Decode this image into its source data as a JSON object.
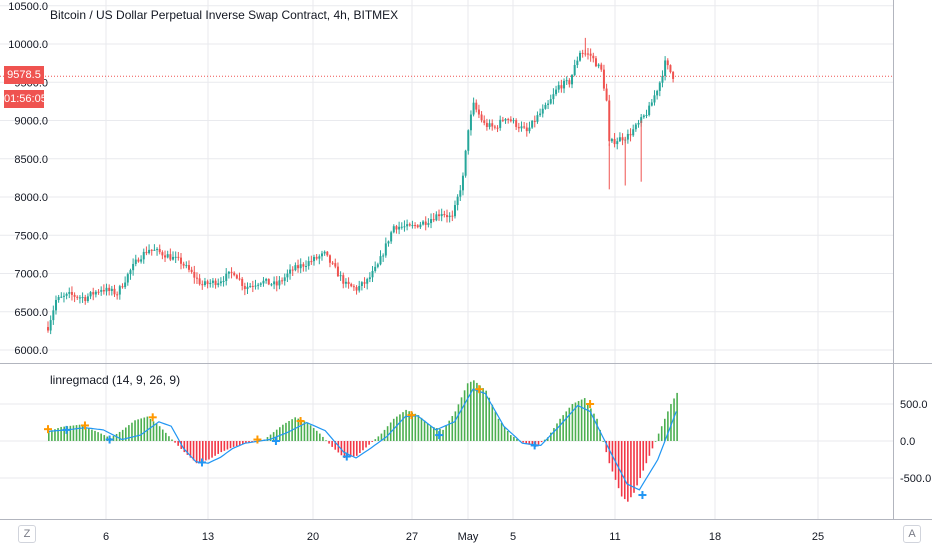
{
  "header": {
    "title": "Bitcoin / US Dollar Perpetual Inverse Swap Contract, 4h, BITMEX"
  },
  "price_tag": {
    "price": "9578.5",
    "countdown": "01:56:05"
  },
  "indicator": {
    "label": "linregmacd (14, 9, 26, 9)"
  },
  "controls": {
    "left": "Z",
    "right": "A"
  },
  "colors": {
    "up": "#26a69a",
    "down": "#ef5350",
    "hist_up": "#4caf50",
    "hist_down": "#f23645",
    "signal": "#2196f3",
    "cross_up": "#2196f3",
    "cross_down": "#ff9800",
    "grid": "#e9eaee"
  },
  "chart_data": [
    {
      "type": "candlestick",
      "title": "Bitcoin / US Dollar Perpetual Inverse Swap Contract, 4h, BITMEX",
      "y_ticks": [
        "10500.0",
        "10000.0",
        "9500.0",
        "9000.0",
        "8500.0",
        "8000.0",
        "7500.0",
        "7000.0",
        "6500.0",
        "6000.0"
      ],
      "ylim": [
        5850,
        10600
      ],
      "x_ticks": [
        "6",
        "13",
        "20",
        "27",
        "May",
        "5",
        "11",
        "18",
        "25"
      ],
      "last_price": 9578.5,
      "close_path": [
        [
          0,
          6300
        ],
        [
          3,
          6650
        ],
        [
          8,
          6720
        ],
        [
          14,
          6680
        ],
        [
          20,
          6800
        ],
        [
          26,
          6740
        ],
        [
          30,
          6980
        ],
        [
          34,
          7200
        ],
        [
          38,
          7320
        ],
        [
          44,
          7250
        ],
        [
          50,
          7150
        ],
        [
          54,
          7000
        ],
        [
          58,
          6850
        ],
        [
          64,
          6900
        ],
        [
          70,
          7020
        ],
        [
          74,
          6820
        ],
        [
          80,
          6900
        ],
        [
          86,
          6850
        ],
        [
          92,
          7050
        ],
        [
          98,
          7150
        ],
        [
          104,
          7250
        ],
        [
          108,
          7050
        ],
        [
          112,
          6850
        ],
        [
          116,
          6800
        ],
        [
          120,
          6900
        ],
        [
          124,
          7100
        ],
        [
          130,
          7620
        ],
        [
          136,
          7600
        ],
        [
          142,
          7680
        ],
        [
          148,
          7800
        ],
        [
          152,
          7720
        ],
        [
          156,
          8250
        ],
        [
          158,
          8900
        ],
        [
          160,
          9200
        ],
        [
          164,
          8950
        ],
        [
          168,
          8900
        ],
        [
          172,
          9050
        ],
        [
          176,
          8950
        ],
        [
          180,
          8850
        ],
        [
          184,
          9050
        ],
        [
          188,
          9200
        ],
        [
          192,
          9450
        ],
        [
          196,
          9500
        ],
        [
          200,
          9900
        ],
        [
          204,
          9850
        ],
        [
          208,
          9650
        ],
        [
          210,
          9250
        ],
        [
          211,
          8700
        ],
        [
          214,
          8750
        ],
        [
          218,
          8800
        ],
        [
          222,
          8950
        ],
        [
          226,
          9150
        ],
        [
          230,
          9500
        ],
        [
          232,
          9750
        ],
        [
          235,
          9580
        ]
      ]
    },
    {
      "type": "histogram",
      "title": "linregmacd (14, 9, 26, 9)",
      "y_ticks": [
        "500.0",
        "0.0",
        "-500.0"
      ],
      "ylim": [
        -900,
        900
      ],
      "hist_path": [
        [
          0,
          130
        ],
        [
          4,
          190
        ],
        [
          10,
          220
        ],
        [
          16,
          120
        ],
        [
          20,
          40
        ],
        [
          24,
          150
        ],
        [
          28,
          280
        ],
        [
          32,
          330
        ],
        [
          36,
          200
        ],
        [
          40,
          20
        ],
        [
          44,
          -150
        ],
        [
          48,
          -300
        ],
        [
          52,
          -250
        ],
        [
          56,
          -150
        ],
        [
          60,
          -80
        ],
        [
          64,
          -30
        ],
        [
          70,
          20
        ],
        [
          76,
          220
        ],
        [
          80,
          320
        ],
        [
          84,
          250
        ],
        [
          88,
          100
        ],
        [
          92,
          -80
        ],
        [
          96,
          -230
        ],
        [
          100,
          -200
        ],
        [
          104,
          -50
        ],
        [
          108,
          100
        ],
        [
          112,
          300
        ],
        [
          116,
          420
        ],
        [
          120,
          350
        ],
        [
          124,
          200
        ],
        [
          128,
          150
        ],
        [
          132,
          400
        ],
        [
          136,
          780
        ],
        [
          138,
          820
        ],
        [
          142,
          680
        ],
        [
          146,
          300
        ],
        [
          150,
          80
        ],
        [
          154,
          -20
        ],
        [
          158,
          -80
        ],
        [
          162,
          50
        ],
        [
          166,
          300
        ],
        [
          170,
          500
        ],
        [
          174,
          580
        ],
        [
          178,
          300
        ],
        [
          182,
          -300
        ],
        [
          186,
          -750
        ],
        [
          188,
          -820
        ],
        [
          190,
          -700
        ],
        [
          194,
          -300
        ],
        [
          198,
          100
        ],
        [
          202,
          500
        ],
        [
          204,
          650
        ]
      ],
      "signal_path": [
        [
          0,
          130
        ],
        [
          6,
          150
        ],
        [
          12,
          180
        ],
        [
          18,
          150
        ],
        [
          24,
          20
        ],
        [
          30,
          80
        ],
        [
          36,
          260
        ],
        [
          40,
          200
        ],
        [
          44,
          -100
        ],
        [
          48,
          -280
        ],
        [
          52,
          -300
        ],
        [
          56,
          -220
        ],
        [
          60,
          -100
        ],
        [
          64,
          -30
        ],
        [
          72,
          20
        ],
        [
          78,
          120
        ],
        [
          84,
          250
        ],
        [
          90,
          140
        ],
        [
          96,
          -150
        ],
        [
          100,
          -230
        ],
        [
          104,
          -120
        ],
        [
          110,
          60
        ],
        [
          116,
          330
        ],
        [
          120,
          340
        ],
        [
          126,
          150
        ],
        [
          132,
          260
        ],
        [
          138,
          700
        ],
        [
          142,
          640
        ],
        [
          148,
          200
        ],
        [
          154,
          -30
        ],
        [
          160,
          -60
        ],
        [
          166,
          200
        ],
        [
          172,
          480
        ],
        [
          176,
          400
        ],
        [
          182,
          -100
        ],
        [
          188,
          -580
        ],
        [
          192,
          -660
        ],
        [
          198,
          -250
        ],
        [
          204,
          400
        ]
      ],
      "crosses": [
        {
          "t": 0,
          "v": 160,
          "dir": "down"
        },
        {
          "t": 6,
          "v": 150,
          "dir": "up"
        },
        {
          "t": 12,
          "v": 210,
          "dir": "down"
        },
        {
          "t": 20,
          "v": 20,
          "dir": "up"
        },
        {
          "t": 34,
          "v": 320,
          "dir": "down"
        },
        {
          "t": 50,
          "v": -290,
          "dir": "up"
        },
        {
          "t": 68,
          "v": 20,
          "dir": "down"
        },
        {
          "t": 74,
          "v": 0,
          "dir": "up"
        },
        {
          "t": 82,
          "v": 270,
          "dir": "down"
        },
        {
          "t": 97,
          "v": -210,
          "dir": "up"
        },
        {
          "t": 118,
          "v": 350,
          "dir": "down"
        },
        {
          "t": 127,
          "v": 80,
          "dir": "up"
        },
        {
          "t": 140,
          "v": 700,
          "dir": "down"
        },
        {
          "t": 158,
          "v": -60,
          "dir": "up"
        },
        {
          "t": 176,
          "v": 500,
          "dir": "down"
        },
        {
          "t": 193,
          "v": -730,
          "dir": "up"
        }
      ]
    }
  ]
}
